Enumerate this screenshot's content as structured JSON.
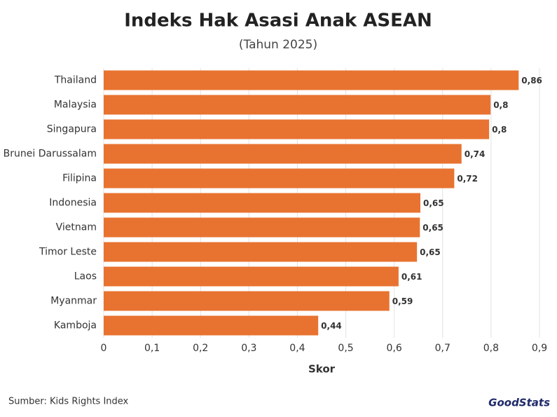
{
  "chart_data": {
    "type": "barh",
    "title": "Indeks Hak Asasi Anak ASEAN",
    "subtitle": "(Tahun 2025)",
    "categories": [
      "Thailand",
      "Malaysia",
      "Singapura",
      "Brunei Darussalam",
      "Filipina",
      "Indonesia",
      "Vietnam",
      "Timor Leste",
      "Laos",
      "Myanmar",
      "Kamboja"
    ],
    "values": [
      0.857,
      0.799,
      0.796,
      0.739,
      0.724,
      0.654,
      0.653,
      0.647,
      0.609,
      0.59,
      0.443
    ],
    "value_labels": [
      "0,86",
      "0,8",
      "0,8",
      "0,74",
      "0,72",
      "0,65",
      "0,65",
      "0,65",
      "0,61",
      "0,59",
      "0,44"
    ],
    "color": "#e87331",
    "xlim": [
      0,
      0.9
    ],
    "xticks": [
      0,
      {
        "value": 0.1,
        "label": "0,1"
      },
      {
        "value": 0.2,
        "label": "0,2"
      },
      {
        "value": 0.3,
        "label": "0,3"
      },
      {
        "value": 0.4,
        "label": "0,4"
      },
      {
        "value": 0.5,
        "label": "0,5"
      },
      {
        "value": 0.6,
        "label": "0,6"
      },
      {
        "value": 0.7,
        "label": "0,7"
      },
      {
        "value": 0.8,
        "label": "0,8"
      },
      {
        "value": 0.9,
        "label": "0,9"
      }
    ],
    "xlabel": "Skor",
    "grid": true,
    "source": "Sumber: Kids Rights Index",
    "brand": "GoodStats"
  }
}
